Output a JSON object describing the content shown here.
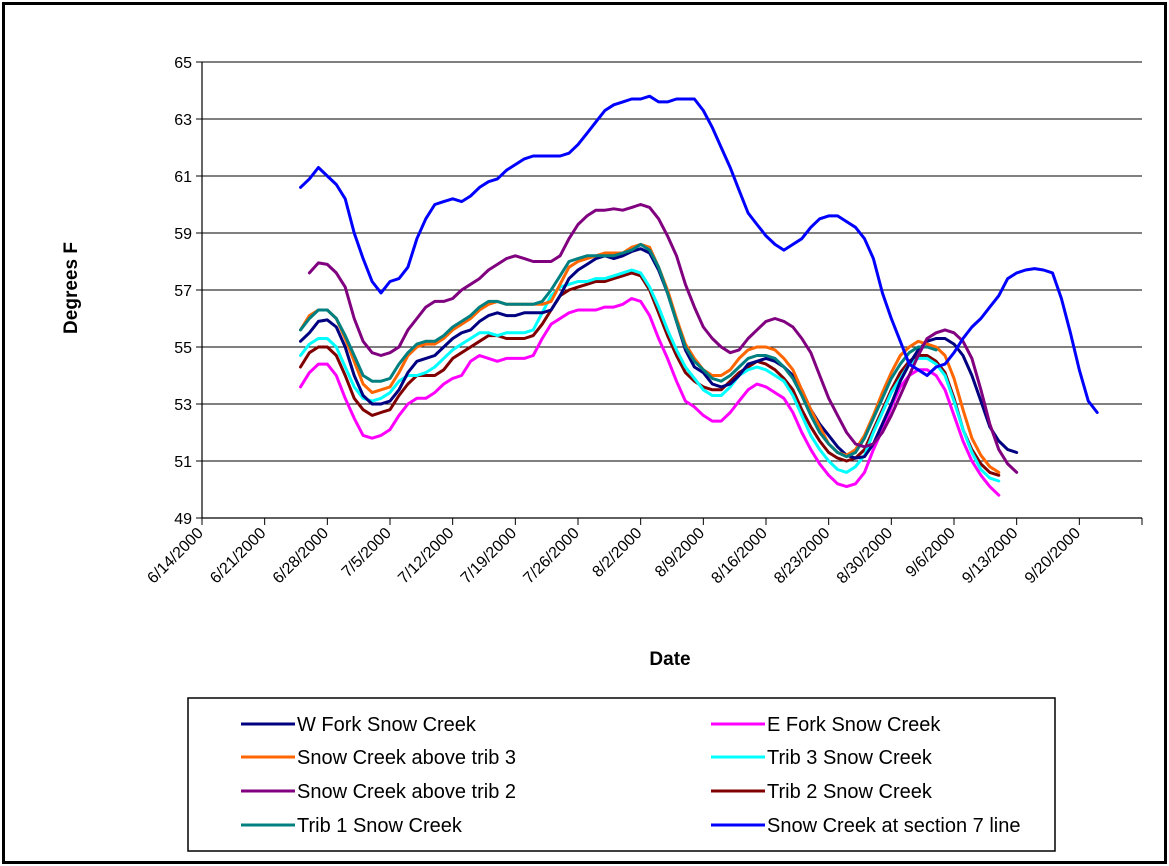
{
  "chart_data": {
    "type": "line",
    "title": "",
    "xlabel": "Date",
    "ylabel": "Degrees F",
    "ylim": [
      49,
      65
    ],
    "y_ticks": [
      49,
      51,
      53,
      55,
      57,
      59,
      61,
      63,
      65
    ],
    "x_tick_labels": [
      "6/14/2000",
      "6/21/2000",
      "6/28/2000",
      "7/5/2000",
      "7/12/2000",
      "7/19/2000",
      "7/26/2000",
      "8/2/2000",
      "8/9/2000",
      "8/16/2000",
      "8/23/2000",
      "8/30/2000",
      "9/6/2000",
      "9/13/2000",
      "9/20/2000"
    ],
    "x_start": "2000-06-14",
    "x_end": "2000-09-27",
    "grid": "horizontal",
    "legend_position": "bottom",
    "series": [
      {
        "name": "W Fork Snow Creek",
        "color": "#000080",
        "start": "2000-06-25",
        "values": [
          55.2,
          55.5,
          55.9,
          55.95,
          55.7,
          55.0,
          54.0,
          53.3,
          53.0,
          53.0,
          53.1,
          53.5,
          54.1,
          54.5,
          54.6,
          54.7,
          55.0,
          55.3,
          55.5,
          55.6,
          55.9,
          56.1,
          56.2,
          56.1,
          56.1,
          56.2,
          56.2,
          56.2,
          56.3,
          56.8,
          57.4,
          57.7,
          57.9,
          58.1,
          58.2,
          58.1,
          58.2,
          58.35,
          58.45,
          58.3,
          57.7,
          56.9,
          55.9,
          54.9,
          54.3,
          54.1,
          53.7,
          53.6,
          53.7,
          54.0,
          54.4,
          54.5,
          54.6,
          54.5,
          54.3,
          54.0,
          53.5,
          52.8,
          52.3,
          51.9,
          51.5,
          51.2,
          51.1,
          51.15,
          51.6,
          52.3,
          53.0,
          53.8,
          54.4,
          54.9,
          55.2,
          55.3,
          55.3,
          55.1,
          54.7,
          54.0,
          53.1,
          52.2,
          51.7,
          51.4,
          51.3
        ]
      },
      {
        "name": "E Fork Snow Creek",
        "color": "#FF00FF",
        "start": "2000-06-25",
        "values": [
          53.6,
          54.1,
          54.4,
          54.4,
          54.0,
          53.2,
          52.5,
          51.9,
          51.8,
          51.9,
          52.1,
          52.6,
          53.0,
          53.2,
          53.2,
          53.4,
          53.7,
          53.9,
          54.0,
          54.5,
          54.7,
          54.6,
          54.5,
          54.6,
          54.6,
          54.6,
          54.7,
          55.3,
          55.8,
          56.0,
          56.2,
          56.3,
          56.3,
          56.3,
          56.4,
          56.4,
          56.5,
          56.7,
          56.6,
          56.1,
          55.3,
          54.6,
          53.8,
          53.1,
          52.9,
          52.6,
          52.4,
          52.4,
          52.7,
          53.1,
          53.5,
          53.7,
          53.6,
          53.4,
          53.2,
          52.7,
          52.0,
          51.4,
          50.9,
          50.5,
          50.2,
          50.1,
          50.2,
          50.6,
          51.4,
          52.1,
          52.9,
          53.6,
          54.0,
          54.2,
          54.2,
          54.0,
          53.5,
          52.6,
          51.7,
          51.0,
          50.5,
          50.1,
          49.8
        ]
      },
      {
        "name": "Snow Creek above trib 3",
        "color": "#FF6600",
        "start": "2000-06-25",
        "values": [
          55.6,
          56.1,
          56.3,
          56.3,
          56.0,
          55.3,
          54.5,
          53.7,
          53.4,
          53.5,
          53.6,
          54.1,
          54.7,
          55.0,
          55.1,
          55.1,
          55.3,
          55.6,
          55.8,
          56.0,
          56.3,
          56.5,
          56.6,
          56.5,
          56.5,
          56.5,
          56.5,
          56.5,
          56.6,
          57.2,
          57.8,
          58.0,
          58.1,
          58.2,
          58.3,
          58.3,
          58.3,
          58.5,
          58.6,
          58.5,
          57.8,
          57.0,
          56.0,
          55.1,
          54.6,
          54.2,
          54.0,
          54.0,
          54.2,
          54.6,
          54.9,
          55.0,
          55.0,
          54.9,
          54.6,
          54.2,
          53.5,
          52.8,
          52.2,
          51.6,
          51.3,
          51.2,
          51.4,
          51.9,
          52.6,
          53.4,
          54.1,
          54.7,
          55.0,
          55.2,
          55.1,
          55.0,
          54.7,
          53.9,
          52.8,
          51.8,
          51.2,
          50.8,
          50.6
        ]
      },
      {
        "name": "Trib 3 Snow Creek",
        "color": "#00FFFF",
        "start": "2000-06-25",
        "values": [
          54.7,
          55.1,
          55.3,
          55.3,
          55.0,
          54.3,
          53.6,
          53.2,
          53.1,
          53.2,
          53.4,
          53.8,
          54.0,
          54.0,
          54.1,
          54.3,
          54.6,
          54.9,
          55.1,
          55.3,
          55.5,
          55.5,
          55.4,
          55.5,
          55.5,
          55.5,
          55.6,
          56.2,
          56.8,
          57.1,
          57.2,
          57.3,
          57.3,
          57.4,
          57.4,
          57.5,
          57.6,
          57.7,
          57.6,
          57.1,
          56.4,
          55.6,
          54.9,
          54.3,
          53.9,
          53.5,
          53.3,
          53.3,
          53.6,
          54.0,
          54.2,
          54.3,
          54.2,
          54.0,
          53.8,
          53.3,
          52.6,
          51.9,
          51.4,
          51.0,
          50.7,
          50.6,
          50.8,
          51.2,
          52.0,
          52.7,
          53.4,
          53.9,
          54.4,
          54.6,
          54.6,
          54.4,
          54.0,
          53.1,
          52.1,
          51.3,
          50.7,
          50.4,
          50.3
        ]
      },
      {
        "name": "Snow Creek above trib 2",
        "color": "#800080",
        "start": "2000-06-26",
        "values": [
          57.6,
          57.95,
          57.9,
          57.6,
          57.1,
          56.0,
          55.2,
          54.8,
          54.7,
          54.8,
          55.0,
          55.6,
          56.0,
          56.4,
          56.6,
          56.6,
          56.7,
          57.0,
          57.2,
          57.4,
          57.7,
          57.9,
          58.1,
          58.2,
          58.1,
          58.0,
          58.0,
          58.0,
          58.2,
          58.8,
          59.3,
          59.6,
          59.8,
          59.8,
          59.85,
          59.8,
          59.9,
          60.0,
          59.9,
          59.5,
          58.9,
          58.2,
          57.2,
          56.4,
          55.7,
          55.3,
          55.0,
          54.8,
          54.9,
          55.3,
          55.6,
          55.9,
          56.0,
          55.9,
          55.7,
          55.3,
          54.8,
          54.0,
          53.2,
          52.6,
          52.0,
          51.6,
          51.5,
          51.6,
          52.0,
          52.6,
          53.3,
          54.0,
          54.7,
          55.3,
          55.5,
          55.6,
          55.5,
          55.2,
          54.6,
          53.5,
          52.3,
          51.4,
          50.9,
          50.6
        ]
      },
      {
        "name": "Trib 2 Snow Creek",
        "color": "#800000",
        "start": "2000-06-25",
        "values": [
          54.3,
          54.8,
          55.0,
          55.0,
          54.7,
          54.0,
          53.2,
          52.8,
          52.6,
          52.7,
          52.8,
          53.3,
          53.7,
          54.0,
          54.0,
          54.0,
          54.2,
          54.6,
          54.8,
          55.0,
          55.2,
          55.4,
          55.4,
          55.3,
          55.3,
          55.3,
          55.4,
          55.8,
          56.3,
          56.8,
          57.0,
          57.1,
          57.2,
          57.3,
          57.3,
          57.4,
          57.5,
          57.6,
          57.5,
          57.0,
          56.2,
          55.4,
          54.7,
          54.1,
          53.8,
          53.6,
          53.5,
          53.5,
          53.8,
          54.1,
          54.3,
          54.5,
          54.4,
          54.2,
          53.9,
          53.5,
          52.8,
          52.2,
          51.7,
          51.3,
          51.1,
          51.0,
          51.1,
          51.4,
          52.1,
          52.8,
          53.5,
          54.1,
          54.5,
          54.7,
          54.7,
          54.5,
          54.1,
          53.2,
          52.1,
          51.4,
          50.9,
          50.6,
          50.5
        ]
      },
      {
        "name": "Trib 1 Snow Creek",
        "color": "#008080",
        "start": "2000-06-25",
        "values": [
          55.6,
          56.0,
          56.3,
          56.3,
          56.0,
          55.4,
          54.7,
          54.0,
          53.8,
          53.8,
          53.9,
          54.4,
          54.8,
          55.1,
          55.2,
          55.2,
          55.4,
          55.7,
          55.9,
          56.1,
          56.4,
          56.6,
          56.6,
          56.5,
          56.5,
          56.5,
          56.5,
          56.6,
          57.0,
          57.5,
          58.0,
          58.1,
          58.2,
          58.2,
          58.2,
          58.2,
          58.3,
          58.4,
          58.6,
          58.4,
          57.8,
          56.9,
          55.9,
          55.0,
          54.5,
          54.2,
          53.9,
          53.8,
          54.0,
          54.3,
          54.6,
          54.7,
          54.7,
          54.6,
          54.3,
          53.9,
          53.3,
          52.6,
          52.0,
          51.6,
          51.3,
          51.15,
          51.3,
          51.8,
          52.5,
          53.2,
          53.9,
          54.4,
          54.8,
          55.0,
          55.0,
          54.9
        ]
      },
      {
        "name": "Snow Creek at section 7 line",
        "color": "#0000FF",
        "start": "2000-06-25",
        "values": [
          60.6,
          60.9,
          61.3,
          61.0,
          60.7,
          60.2,
          59.0,
          58.1,
          57.3,
          56.9,
          57.3,
          57.4,
          57.8,
          58.8,
          59.5,
          60.0,
          60.1,
          60.2,
          60.1,
          60.3,
          60.6,
          60.8,
          60.9,
          61.2,
          61.4,
          61.6,
          61.7,
          61.7,
          61.7,
          61.7,
          61.8,
          62.1,
          62.5,
          62.9,
          63.3,
          63.5,
          63.6,
          63.7,
          63.7,
          63.8,
          63.6,
          63.6,
          63.7,
          63.7,
          63.7,
          63.3,
          62.7,
          62.0,
          61.3,
          60.5,
          59.7,
          59.3,
          58.9,
          58.6,
          58.4,
          58.6,
          58.8,
          59.2,
          59.5,
          59.6,
          59.6,
          59.4,
          59.2,
          58.8,
          58.1,
          56.9,
          56.0,
          55.2,
          54.4,
          54.2,
          54.0,
          54.3,
          54.4,
          54.8,
          55.3,
          55.7,
          56.0,
          56.4,
          56.8,
          57.4,
          57.6,
          57.7,
          57.75,
          57.7,
          57.6,
          56.7,
          55.5,
          54.2,
          53.1,
          52.7
        ]
      }
    ],
    "legend_order": [
      0,
      1,
      2,
      3,
      4,
      5,
      6,
      7
    ]
  }
}
